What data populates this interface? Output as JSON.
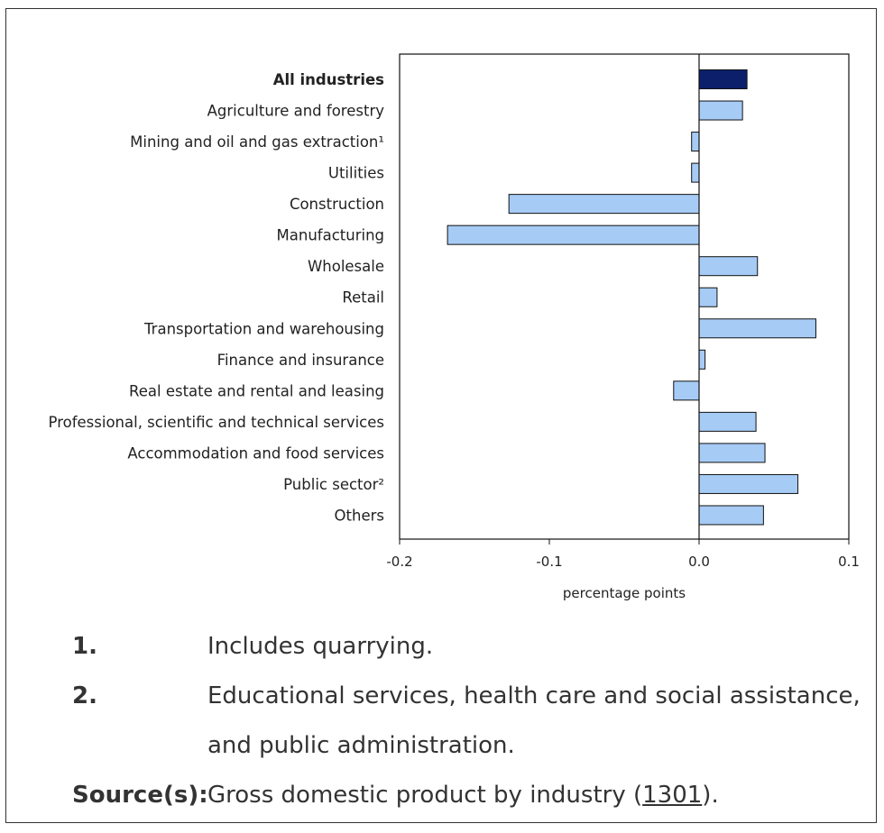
{
  "chart_data": {
    "type": "bar",
    "orientation": "horizontal",
    "categories": [
      "All industries",
      "Agriculture and forestry",
      "Mining and oil and gas extraction¹",
      "Utilities",
      "Construction",
      "Manufacturing",
      "Wholesale",
      "Retail",
      "Transportation and warehousing",
      "Finance and insurance",
      "Real estate and rental and leasing",
      "Professional, scientific and technical services",
      "Accommodation and food services",
      "Public sector²",
      "Others"
    ],
    "values": [
      0.032,
      0.029,
      -0.005,
      -0.005,
      -0.127,
      -0.168,
      0.039,
      0.012,
      0.078,
      0.004,
      -0.017,
      0.038,
      0.044,
      0.066,
      0.043
    ],
    "highlight_index": 0,
    "xlabel": "percentage points",
    "xlim": [
      -0.2,
      0.1
    ],
    "xticks": [
      "-0.2",
      "-0.1",
      "0.0",
      "0.1"
    ],
    "xtick_values": [
      -0.2,
      -0.1,
      0.0,
      0.1
    ],
    "colors": {
      "highlight": "#0b1f6b",
      "bar": "#a6cbf5",
      "edge": "#111111"
    },
    "grid": false
  },
  "notes": [
    {
      "number": "1.",
      "text": "Includes quarrying."
    },
    {
      "number": "2.",
      "text": "Educational services, health care and social assistance, and public administration."
    }
  ],
  "source": {
    "label": "Source(s):",
    "text_before": "Gross domestic product by industry (",
    "link": "1301",
    "text_after": ")."
  }
}
